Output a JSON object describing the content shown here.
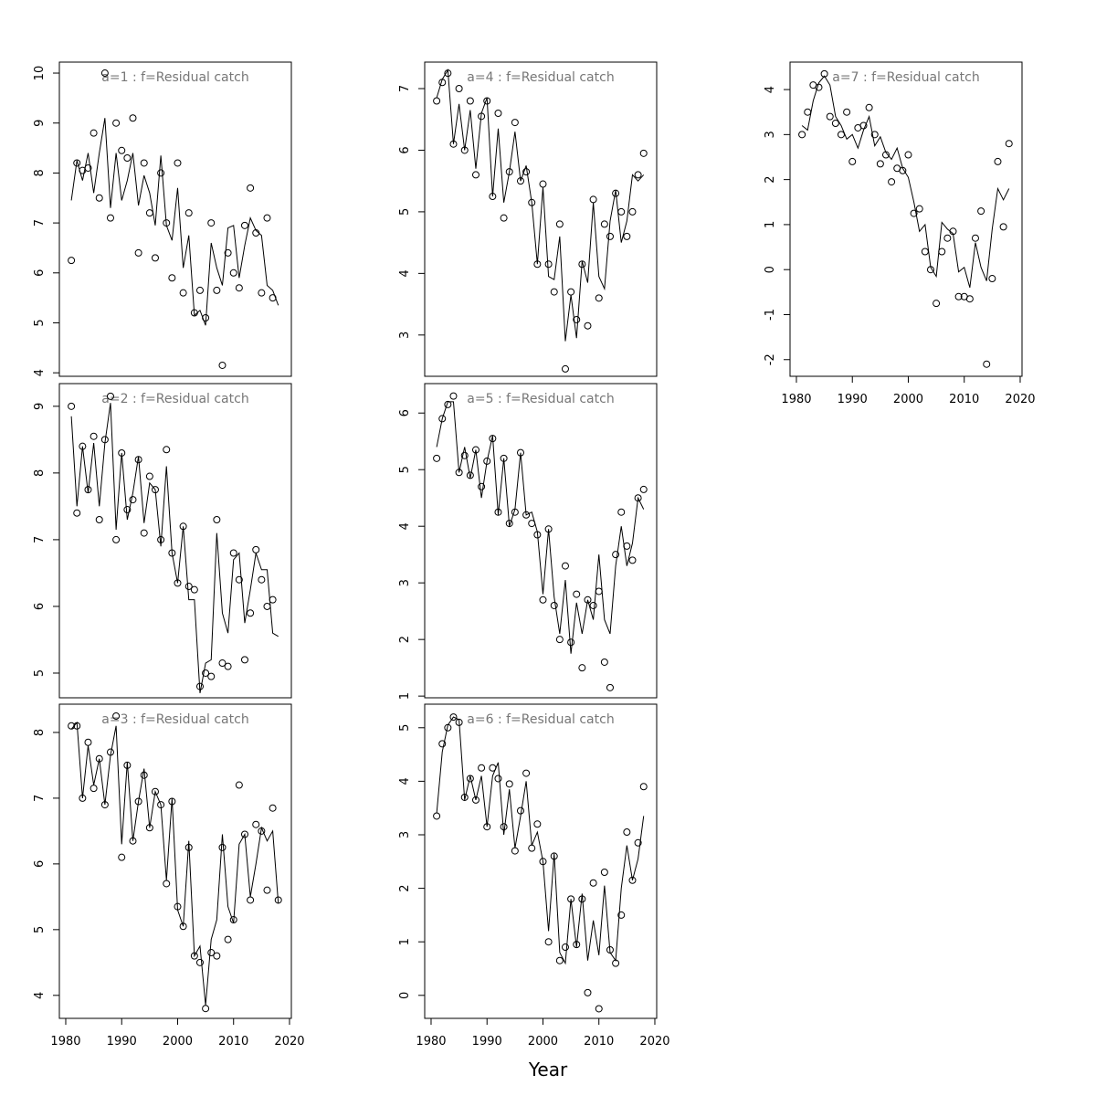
{
  "xlabel": "Year",
  "chart_data": [
    {
      "type": "line",
      "title": "a=1 : f=Residual catch",
      "x": [
        1981,
        1982,
        1983,
        1984,
        1985,
        1986,
        1987,
        1988,
        1989,
        1990,
        1991,
        1992,
        1993,
        1994,
        1995,
        1996,
        1997,
        1998,
        1999,
        2000,
        2001,
        2002,
        2003,
        2004,
        2005,
        2006,
        2007,
        2008,
        2009,
        2010,
        2011,
        2012,
        2013,
        2014,
        2015,
        2016,
        2017,
        2018
      ],
      "xlim": [
        1978.86,
        2020.33
      ],
      "ylim": [
        3.93,
        10.22
      ],
      "yticks": [
        4,
        5,
        6,
        7,
        8,
        9,
        10
      ],
      "series": [
        {
          "style": "points",
          "color": "#000000",
          "values": [
            6.25,
            8.2,
            8.05,
            8.1,
            8.8,
            7.5,
            10.0,
            7.1,
            9.0,
            8.45,
            8.3,
            9.1,
            6.4,
            8.2,
            7.2,
            6.3,
            8.0,
            7.0,
            5.9,
            8.2,
            5.6,
            7.2,
            5.2,
            5.65,
            5.1,
            7.0,
            5.65,
            4.15,
            6.4,
            6.0,
            5.7,
            6.95,
            7.7,
            6.8,
            5.6,
            7.1,
            5.5,
            null
          ]
        },
        {
          "style": "line",
          "color": "#000000",
          "values": [
            7.45,
            8.25,
            7.85,
            8.4,
            7.6,
            8.4,
            9.1,
            7.3,
            8.4,
            7.45,
            7.85,
            8.4,
            7.35,
            7.95,
            7.6,
            6.95,
            8.35,
            6.95,
            6.65,
            7.7,
            6.1,
            6.75,
            5.15,
            5.25,
            4.95,
            6.6,
            6.1,
            5.75,
            6.9,
            6.95,
            5.9,
            6.55,
            7.1,
            6.85,
            6.75,
            5.75,
            5.65,
            5.35
          ]
        }
      ]
    },
    {
      "type": "line",
      "title": "a=2 : f=Residual catch",
      "x": [
        1981,
        1982,
        1983,
        1984,
        1985,
        1986,
        1987,
        1988,
        1989,
        1990,
        1991,
        1992,
        1993,
        1994,
        1995,
        1996,
        1997,
        1998,
        1999,
        2000,
        2001,
        2002,
        2003,
        2004,
        2005,
        2006,
        2007,
        2008,
        2009,
        2010,
        2011,
        2012,
        2013,
        2014,
        2015,
        2016,
        2017,
        2018
      ],
      "xlim": [
        1978.86,
        2020.33
      ],
      "ylim": [
        4.63,
        9.34
      ],
      "yticks": [
        5,
        6,
        7,
        8,
        9
      ],
      "series": [
        {
          "style": "points",
          "color": "#000000",
          "values": [
            9.0,
            7.4,
            8.4,
            7.75,
            8.55,
            7.3,
            8.5,
            9.15,
            7.0,
            8.3,
            7.45,
            7.6,
            8.2,
            7.1,
            7.95,
            7.75,
            7.0,
            8.35,
            6.8,
            6.35,
            7.2,
            6.3,
            6.25,
            4.8,
            5.0,
            4.95,
            7.3,
            5.15,
            5.1,
            6.8,
            6.4,
            5.2,
            5.9,
            6.85,
            6.4,
            6.0,
            6.1,
            null
          ]
        },
        {
          "style": "line",
          "color": "#000000",
          "values": [
            8.85,
            7.5,
            8.4,
            7.7,
            8.45,
            7.5,
            8.45,
            9.05,
            7.15,
            8.3,
            7.3,
            7.7,
            8.25,
            7.25,
            7.85,
            7.75,
            6.9,
            8.1,
            6.8,
            6.35,
            7.2,
            6.1,
            6.1,
            4.7,
            5.15,
            5.2,
            7.1,
            5.9,
            5.6,
            6.7,
            6.8,
            5.75,
            6.25,
            6.8,
            6.55,
            6.55,
            5.6,
            5.55
          ]
        }
      ]
    },
    {
      "type": "line",
      "title": "a=3 : f=Residual catch",
      "x": [
        1981,
        1982,
        1983,
        1984,
        1985,
        1986,
        1987,
        1988,
        1989,
        1990,
        1991,
        1992,
        1993,
        1994,
        1995,
        1996,
        1997,
        1998,
        1999,
        2000,
        2001,
        2002,
        2003,
        2004,
        2005,
        2006,
        2007,
        2008,
        2009,
        2010,
        2011,
        2012,
        2013,
        2014,
        2015,
        2016,
        2017,
        2018
      ],
      "xlim": [
        1978.86,
        2020.33
      ],
      "xticks": [
        1980,
        1990,
        2000,
        2010,
        2020
      ],
      "ylim": [
        3.65,
        8.43
      ],
      "yticks": [
        4,
        5,
        6,
        7,
        8
      ],
      "series": [
        {
          "style": "points",
          "color": "#000000",
          "values": [
            8.1,
            8.1,
            7.0,
            7.85,
            7.15,
            7.6,
            6.9,
            7.7,
            8.25,
            6.1,
            7.5,
            6.35,
            6.95,
            7.35,
            6.55,
            7.1,
            6.9,
            5.7,
            6.95,
            5.35,
            5.05,
            6.25,
            4.6,
            4.5,
            3.8,
            4.65,
            4.6,
            6.25,
            4.85,
            5.15,
            7.2,
            6.45,
            5.45,
            6.6,
            6.5,
            5.6,
            6.85,
            5.45
          ]
        },
        {
          "style": "line",
          "color": "#000000",
          "values": [
            8.05,
            8.15,
            7.0,
            7.8,
            7.2,
            7.6,
            6.9,
            7.65,
            8.1,
            6.3,
            7.55,
            6.35,
            6.95,
            7.45,
            6.55,
            7.1,
            6.9,
            5.75,
            7.0,
            5.3,
            5.05,
            6.35,
            4.6,
            4.75,
            3.85,
            4.85,
            5.15,
            6.45,
            5.35,
            5.1,
            6.3,
            6.45,
            5.5,
            6.0,
            6.55,
            6.35,
            6.5,
            5.4
          ]
        }
      ]
    },
    {
      "type": "line",
      "title": "a=4 : f=Residual catch",
      "x": [
        1981,
        1982,
        1983,
        1984,
        1985,
        1986,
        1987,
        1988,
        1989,
        1990,
        1991,
        1992,
        1993,
        1994,
        1995,
        1996,
        1997,
        1998,
        1999,
        2000,
        2001,
        2002,
        2003,
        2004,
        2005,
        2006,
        2007,
        2008,
        2009,
        2010,
        2011,
        2012,
        2013,
        2014,
        2015,
        2016,
        2017,
        2018
      ],
      "xlim": [
        1978.86,
        2020.33
      ],
      "ylim": [
        2.33,
        7.43
      ],
      "yticks": [
        3,
        4,
        5,
        6,
        7
      ],
      "series": [
        {
          "style": "points",
          "color": "#000000",
          "values": [
            6.8,
            7.1,
            7.25,
            6.1,
            7.0,
            6.0,
            6.8,
            5.6,
            6.55,
            6.8,
            5.25,
            6.6,
            4.9,
            5.65,
            6.45,
            5.5,
            5.65,
            5.15,
            4.15,
            5.45,
            4.15,
            3.7,
            4.8,
            2.45,
            3.7,
            3.25,
            4.15,
            3.15,
            5.2,
            3.6,
            4.8,
            4.6,
            5.3,
            5.0,
            4.6,
            5.0,
            5.6,
            5.95
          ]
        },
        {
          "style": "line",
          "color": "#000000",
          "values": [
            6.85,
            7.15,
            7.3,
            6.1,
            6.75,
            6.0,
            6.65,
            5.7,
            6.6,
            6.85,
            5.25,
            6.35,
            5.15,
            5.65,
            6.3,
            5.5,
            5.75,
            5.15,
            4.15,
            5.4,
            3.95,
            3.9,
            4.6,
            2.9,
            3.65,
            2.95,
            4.2,
            3.85,
            5.15,
            3.95,
            3.75,
            4.85,
            5.35,
            4.5,
            4.85,
            5.6,
            5.5,
            5.6
          ]
        }
      ]
    },
    {
      "type": "line",
      "title": "a=5 : f=Residual catch",
      "x": [
        1981,
        1982,
        1983,
        1984,
        1985,
        1986,
        1987,
        1988,
        1989,
        1990,
        1991,
        1992,
        1993,
        1994,
        1995,
        1996,
        1997,
        1998,
        1999,
        2000,
        2001,
        2002,
        2003,
        2004,
        2005,
        2006,
        2007,
        2008,
        2009,
        2010,
        2011,
        2012,
        2013,
        2014,
        2015,
        2016,
        2017,
        2018
      ],
      "xlim": [
        1978.86,
        2020.33
      ],
      "ylim": [
        0.97,
        6.52
      ],
      "yticks": [
        1,
        2,
        3,
        4,
        5,
        6
      ],
      "series": [
        {
          "style": "points",
          "color": "#000000",
          "values": [
            5.2,
            5.9,
            6.15,
            6.3,
            4.95,
            5.25,
            4.9,
            5.35,
            4.7,
            5.15,
            5.55,
            4.25,
            5.2,
            4.05,
            4.25,
            5.3,
            4.2,
            4.05,
            3.85,
            2.7,
            3.95,
            2.6,
            2.0,
            3.3,
            1.95,
            2.8,
            1.5,
            2.7,
            2.6,
            2.85,
            1.6,
            1.15,
            3.5,
            4.25,
            3.65,
            3.4,
            4.5,
            4.65
          ]
        },
        {
          "style": "line",
          "color": "#000000",
          "values": [
            5.4,
            5.9,
            6.2,
            6.2,
            4.95,
            5.4,
            4.85,
            5.35,
            4.5,
            5.15,
            5.6,
            4.2,
            5.2,
            4.0,
            4.3,
            5.3,
            4.2,
            4.25,
            3.9,
            2.8,
            3.95,
            2.75,
            2.1,
            3.05,
            1.75,
            2.65,
            2.1,
            2.7,
            2.35,
            3.5,
            2.35,
            2.1,
            3.3,
            4.0,
            3.3,
            3.7,
            4.5,
            4.3
          ]
        }
      ]
    },
    {
      "type": "line",
      "title": "a=6 : f=Residual catch",
      "x": [
        1981,
        1982,
        1983,
        1984,
        1985,
        1986,
        1987,
        1988,
        1989,
        1990,
        1991,
        1992,
        1993,
        1994,
        1995,
        1996,
        1997,
        1998,
        1999,
        2000,
        2001,
        2002,
        2003,
        2004,
        2005,
        2006,
        2007,
        2008,
        2009,
        2010,
        2011,
        2012,
        2013,
        2014,
        2015,
        2016,
        2017,
        2018
      ],
      "xlim": [
        1978.86,
        2020.33
      ],
      "xticks": [
        1980,
        1990,
        2000,
        2010,
        2020
      ],
      "ylim": [
        -0.43,
        5.44
      ],
      "yticks": [
        0,
        1,
        2,
        3,
        4,
        5
      ],
      "series": [
        {
          "style": "points",
          "color": "#000000",
          "values": [
            3.35,
            4.7,
            5.0,
            5.2,
            5.1,
            3.7,
            4.05,
            3.65,
            4.25,
            3.15,
            4.25,
            4.05,
            3.15,
            3.95,
            2.7,
            3.45,
            4.15,
            2.75,
            3.2,
            2.5,
            1.0,
            2.6,
            0.65,
            0.9,
            1.8,
            0.95,
            1.8,
            0.05,
            2.1,
            -0.25,
            2.3,
            0.85,
            0.6,
            1.5,
            3.05,
            2.15,
            2.85,
            3.9
          ]
        },
        {
          "style": "line",
          "color": "#000000",
          "values": [
            3.4,
            4.55,
            5.05,
            5.2,
            5.15,
            3.65,
            4.1,
            3.65,
            4.1,
            3.15,
            4.1,
            4.35,
            3.0,
            3.85,
            2.75,
            3.35,
            4.0,
            2.8,
            3.05,
            2.5,
            1.2,
            2.65,
            0.8,
            0.6,
            1.8,
            0.9,
            1.9,
            0.65,
            1.4,
            0.75,
            2.05,
            0.8,
            0.65,
            2.0,
            2.8,
            2.15,
            2.55,
            3.35
          ]
        }
      ]
    },
    {
      "type": "line",
      "title": "a=7 : f=Residual catch",
      "x": [
        1981,
        1982,
        1983,
        1984,
        1985,
        1986,
        1987,
        1988,
        1989,
        1990,
        1991,
        1992,
        1993,
        1994,
        1995,
        1996,
        1997,
        1998,
        1999,
        2000,
        2001,
        2002,
        2003,
        2004,
        2005,
        2006,
        2007,
        2008,
        2009,
        2010,
        2011,
        2012,
        2013,
        2014,
        2015,
        2016,
        2017,
        2018
      ],
      "xlim": [
        1978.86,
        2020.33
      ],
      "xticks": [
        1980,
        1990,
        2000,
        2010,
        2020
      ],
      "ylim": [
        -2.37,
        4.61
      ],
      "yticks": [
        -2,
        -1,
        0,
        1,
        2,
        3,
        4
      ],
      "series": [
        {
          "style": "points",
          "color": "#000000",
          "values": [
            3.0,
            3.5,
            4.1,
            4.05,
            4.35,
            3.4,
            3.25,
            3.0,
            3.5,
            2.4,
            3.15,
            3.2,
            3.6,
            3.0,
            2.35,
            2.55,
            1.95,
            2.25,
            2.2,
            2.55,
            1.25,
            1.35,
            0.4,
            0.0,
            -0.75,
            0.4,
            0.7,
            0.85,
            -0.6,
            -0.6,
            -0.65,
            0.7,
            1.3,
            -2.1,
            -0.2,
            2.4,
            0.95,
            2.8
          ]
        },
        {
          "style": "line",
          "color": "#000000",
          "values": [
            3.2,
            3.1,
            3.75,
            4.15,
            4.3,
            4.1,
            3.4,
            3.2,
            2.9,
            3.0,
            2.7,
            3.1,
            3.4,
            2.75,
            2.95,
            2.6,
            2.45,
            2.7,
            2.25,
            2.05,
            1.5,
            0.85,
            1.0,
            0.05,
            -0.15,
            1.05,
            0.9,
            0.8,
            -0.05,
            0.05,
            -0.4,
            0.6,
            0.05,
            -0.25,
            0.9,
            1.8,
            1.55,
            1.8
          ]
        }
      ]
    }
  ]
}
